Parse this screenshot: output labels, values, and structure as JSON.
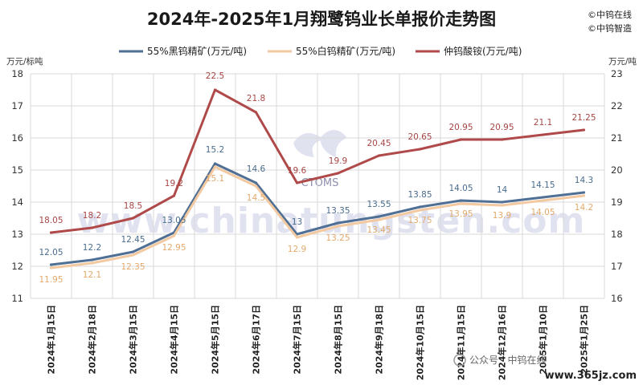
{
  "header": {
    "title": "2024年-2025年1月翔鹭钨业长单报价走势图",
    "brand_lines": [
      "©中钨在线",
      "©中钨智造"
    ]
  },
  "watermark": {
    "text": "www.chinatungsten.com",
    "logo_text": "CTOMS"
  },
  "footer": {
    "wechat_label": "公众号 · 中钨在线",
    "site": "www.365jz.com"
  },
  "chart_data": {
    "type": "line",
    "title": "2024年-2025年1月翔鹭钨业长单报价走势图",
    "categories": [
      "2024年1月15日",
      "2024年2月18日",
      "2024年3月15日",
      "2024年4月15日",
      "2024年5月15日",
      "2024年6月17日",
      "2024年7月15日",
      "2024年8月15日",
      "2024年9月18日",
      "2024年10月15日",
      "2024年11月15日",
      "2024年12月16日",
      "2025年1月10日",
      "2025年1月25日"
    ],
    "y_left": {
      "unit": "万元/标吨",
      "min": 11,
      "max": 18,
      "ticks": [
        11,
        12,
        13,
        14,
        15,
        16,
        17,
        18
      ]
    },
    "y_right": {
      "unit": "万元/吨",
      "min": 16,
      "max": 23,
      "ticks": [
        16,
        17,
        18,
        19,
        20,
        21,
        22,
        23
      ]
    },
    "grid": true,
    "legend_position": "top",
    "series": [
      {
        "name": "55%黑钨精矿(万元/吨)",
        "axis": "left",
        "color": "#4f6f94",
        "label_color": "#4a6c8e",
        "values": [
          12.05,
          12.2,
          12.45,
          13.05,
          15.2,
          14.6,
          13,
          13.35,
          13.55,
          13.85,
          14.05,
          14,
          14.15,
          14.3
        ],
        "labels": [
          "12.05",
          "12.2",
          "12.45",
          "13.05",
          "15.2",
          "14.6",
          "13",
          "13.35",
          "13.55",
          "13.85",
          "14.05",
          "14",
          "14.15",
          "14.3"
        ]
      },
      {
        "name": "55%白钨精矿(万元/吨)",
        "axis": "left",
        "color": "#f2c9a0",
        "label_color": "#e3a96c",
        "values": [
          11.95,
          12.1,
          12.35,
          12.95,
          15.1,
          14.5,
          12.9,
          13.25,
          13.45,
          13.75,
          13.95,
          13.9,
          14.05,
          14.2
        ],
        "labels": [
          "11.95",
          "12.1",
          "12.35",
          "12.95",
          "15.1",
          "14.5",
          "12.9",
          "13.25",
          "13.45",
          "13.75",
          "13.95",
          "13.9",
          "14.05",
          "14.2"
        ]
      },
      {
        "name": "仲钨酸铵(万元/吨)",
        "axis": "right",
        "color": "#b04a4a",
        "label_color": "#a84646",
        "values": [
          18.05,
          18.2,
          18.5,
          19.2,
          22.5,
          21.8,
          19.6,
          19.9,
          20.45,
          20.65,
          20.95,
          20.95,
          21.1,
          21.25
        ],
        "labels": [
          "18.05",
          "18.2",
          "18.5",
          "19.2",
          "22.5",
          "21.8",
          "19.6",
          "19.9",
          "20.45",
          "20.65",
          "20.95",
          "20.95",
          "21.1",
          "21.25"
        ]
      }
    ]
  }
}
